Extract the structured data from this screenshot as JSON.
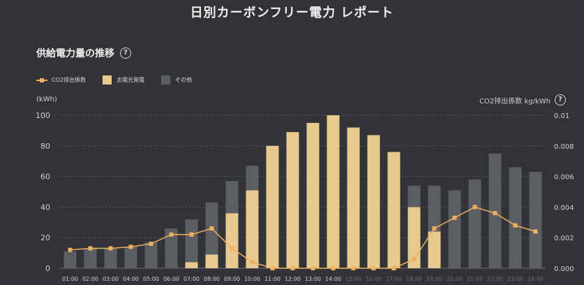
{
  "page": {
    "title": "日別カーボンフリー電力 レポート",
    "subtitle": "供給電力量の推移",
    "help_glyph": "?"
  },
  "legend": [
    {
      "label": "CO2排出係数",
      "kind": "line",
      "color": "#f0b060"
    },
    {
      "label": "太陽光発電",
      "kind": "box",
      "color": "#e8c98f"
    },
    {
      "label": "その他",
      "kind": "box",
      "color": "#5b5e62"
    }
  ],
  "axes": {
    "left_label": "(kWh)",
    "right_label": "CO2排出係数 kg/kWh"
  },
  "colors": {
    "background": "#313336",
    "solar": "#e8c98f",
    "other": "#5b5e62",
    "co2_line": "#f0b060",
    "grid": "#5a5c60",
    "tick_text": "#d0d0d0",
    "tick_text_dim": "#6b6d70"
  },
  "chart_data": {
    "type": "bar",
    "stacked": true,
    "categories": [
      "01:00",
      "02:00",
      "03:00",
      "04:00",
      "05:00",
      "06:00",
      "07:00",
      "08:00",
      "09:00",
      "10:00",
      "11:00",
      "12:00",
      "13:00",
      "14:00",
      "15:00",
      "16:00",
      "17:00",
      "18:00",
      "19:00",
      "20:00",
      "21:00",
      "22:00",
      "23:00",
      "24:00"
    ],
    "dim_categories": [
      "15:00",
      "16:00",
      "17:00",
      "18:00",
      "19:00",
      "20:00",
      "21:00",
      "22:00",
      "23:00",
      "24:00"
    ],
    "series": [
      {
        "name": "太陽光発電",
        "axis": "left",
        "values": [
          0,
          0,
          0,
          0,
          0,
          0,
          4,
          9,
          36,
          51,
          80,
          89,
          95,
          100,
          92,
          87,
          76,
          40,
          24,
          0,
          0,
          0,
          0,
          0
        ]
      },
      {
        "name": "その他",
        "axis": "left",
        "values": [
          11,
          13,
          13,
          14,
          17,
          26,
          28,
          34,
          21,
          16,
          0,
          0,
          0,
          0,
          0,
          0,
          0,
          14,
          30,
          51,
          58,
          75,
          66,
          63
        ]
      },
      {
        "name": "CO2排出係数",
        "type": "line",
        "axis": "right",
        "values": [
          0.0012,
          0.0013,
          0.0013,
          0.0014,
          0.0016,
          0.0022,
          0.0022,
          0.0026,
          0.0013,
          0.0004,
          0.0,
          0.0,
          0.0,
          0.0,
          0.0,
          0.0,
          0.0,
          0.0006,
          0.0026,
          0.0033,
          0.004,
          0.0036,
          0.0028,
          0.0024
        ]
      }
    ],
    "ylim": [
      0,
      100
    ],
    "y_ticks": [
      "0",
      "20",
      "40",
      "60",
      "80",
      "100"
    ],
    "y2lim": [
      0,
      0.01
    ],
    "y2_ticks": [
      "0.000",
      "0.002",
      "0.004",
      "0.006",
      "0.008",
      "0.01"
    ],
    "grid": true,
    "legend_position": "top-left"
  }
}
